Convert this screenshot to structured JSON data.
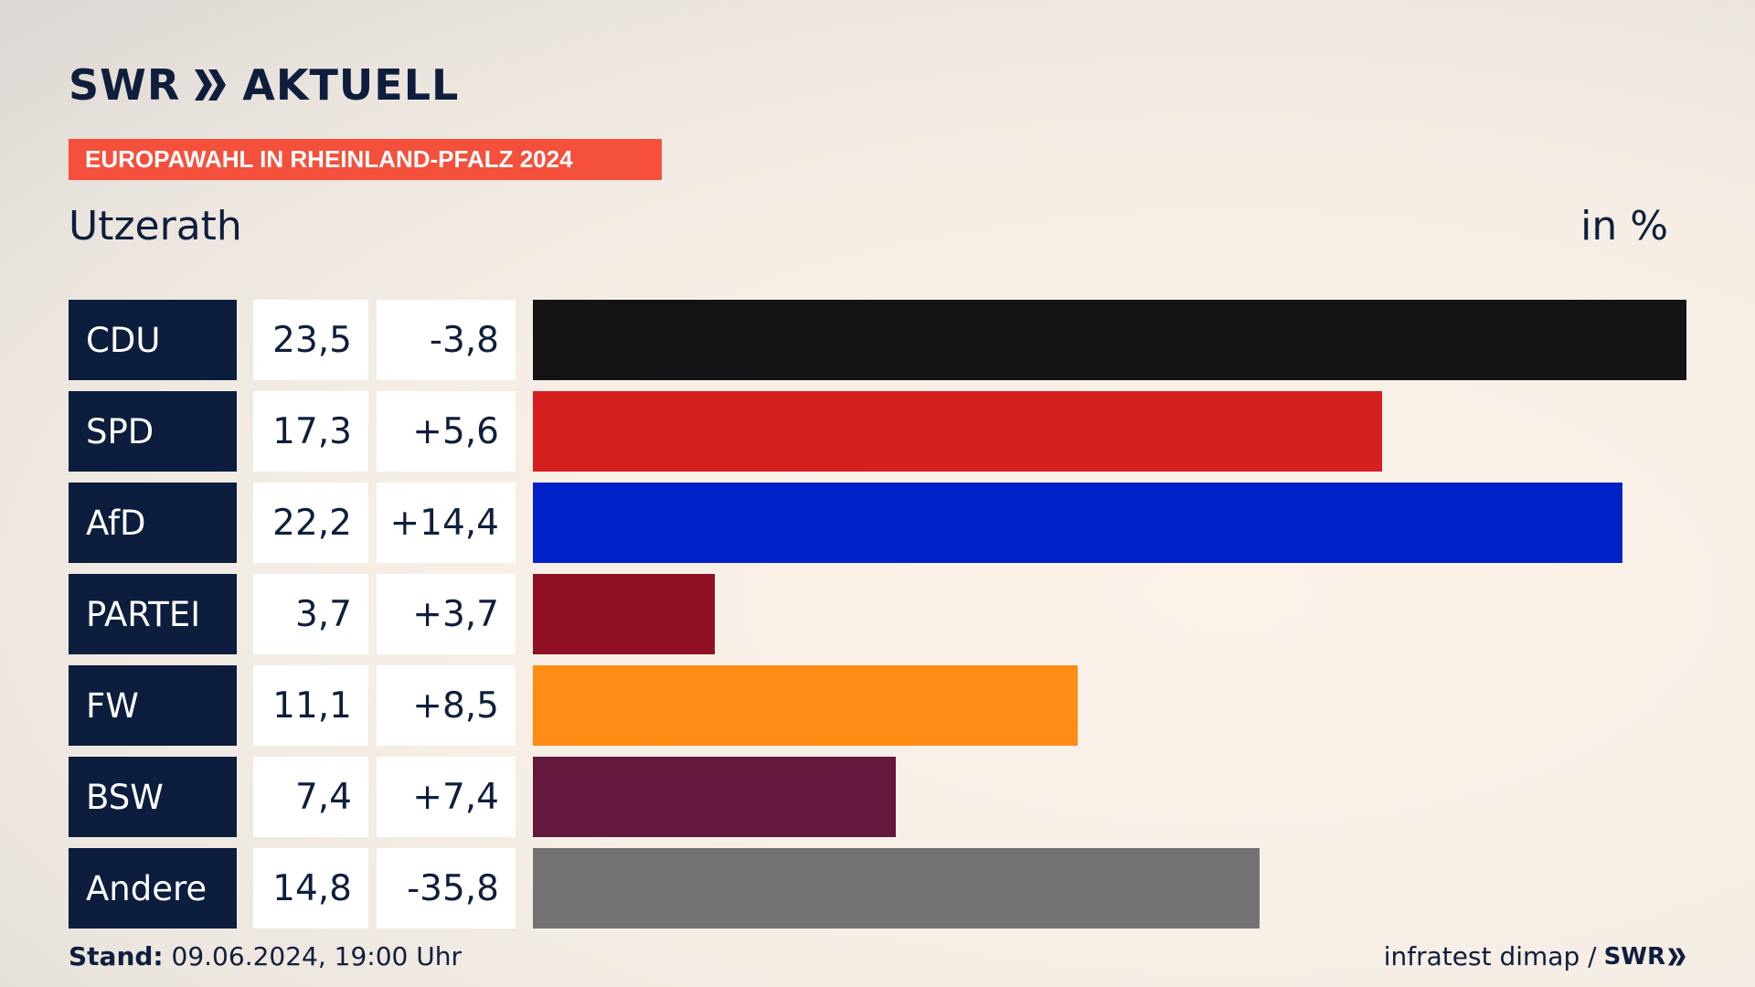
{
  "header": {
    "logo_left": "SWR",
    "logo_right": "AKTUELL",
    "banner": "EUROPAWAHL IN RHEINLAND-PFALZ 2024",
    "place": "Utzerath",
    "unit": "in %"
  },
  "colors": {
    "CDU": "#141414",
    "SPD": "#d61f1f",
    "AfD": "#0021c8",
    "PARTEI": "#8e1022",
    "FW": "#ff8c14",
    "BSW": "#65183e",
    "Andere": "#727272"
  },
  "chart_data": {
    "type": "bar",
    "orientation": "horizontal",
    "categories": [
      "CDU",
      "SPD",
      "AfD",
      "PARTEI",
      "FW",
      "BSW",
      "Andere"
    ],
    "values": [
      23.5,
      17.3,
      22.2,
      3.7,
      11.1,
      7.4,
      14.8
    ],
    "value_labels": [
      "23,5",
      "17,3",
      "22,2",
      "3,7",
      "11,1",
      "7,4",
      "14,8"
    ],
    "diff_labels": [
      "-3,8",
      "+5,6",
      "+14,4",
      "+3,7",
      "+8,5",
      "+7,4",
      "-35,8"
    ],
    "diffs": [
      -3.8,
      5.6,
      14.4,
      3.7,
      8.5,
      7.4,
      -35.8
    ],
    "ylabel": "in %",
    "xlim": [
      0,
      23.5
    ],
    "grid": false,
    "legend": "none"
  },
  "footer": {
    "stand_label": "Stand:",
    "stand_value": "09.06.2024, 19:00 Uhr",
    "source": "infratest dimap /",
    "source_logo": "SWR"
  }
}
